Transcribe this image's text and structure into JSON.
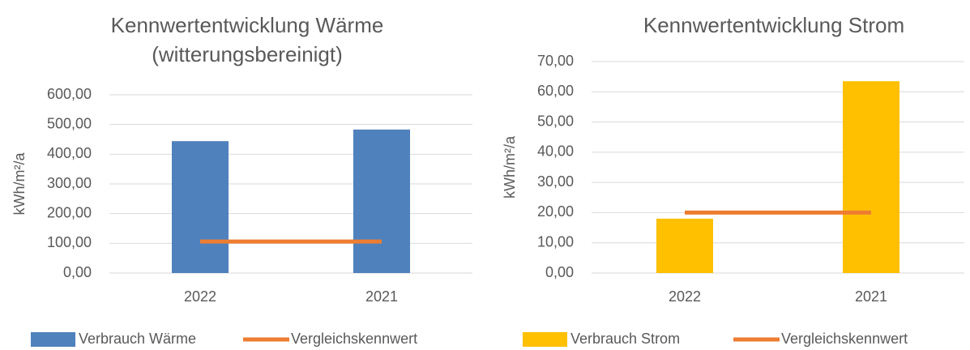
{
  "chart_data": [
    {
      "type": "combo",
      "title": [
        "Kennwertentwicklung Wärme",
        "(witterungsbereinigt)"
      ],
      "y_label": "kWh/m²/a",
      "categories": [
        "2022",
        "2021"
      ],
      "series": [
        {
          "name": "Verbrauch Wärme",
          "type": "bar",
          "color": "#4f81bd",
          "values": [
            444,
            483
          ]
        },
        {
          "name": "Vergleichskennwert",
          "type": "line",
          "color": "#ed7d31",
          "values": [
            106,
            106
          ]
        }
      ],
      "ylim": [
        0,
        600
      ],
      "yticks": [
        {
          "value": 0,
          "label": "0,00"
        },
        {
          "value": 100,
          "label": "100,00"
        },
        {
          "value": 200,
          "label": "200,00"
        },
        {
          "value": 300,
          "label": "300,00"
        },
        {
          "value": 400,
          "label": "400,00"
        },
        {
          "value": 500,
          "label": "500,00"
        },
        {
          "value": 600,
          "label": "600,00"
        }
      ],
      "grid": true,
      "legend": "bottom"
    },
    {
      "type": "combo",
      "title": [
        "Kennwertentwicklung Strom"
      ],
      "y_label": "kWh/m²/a",
      "categories": [
        "2022",
        "2021"
      ],
      "series": [
        {
          "name": "Verbrauch Strom",
          "type": "bar",
          "color": "#ffc000",
          "values": [
            18,
            63.5
          ]
        },
        {
          "name": "Vergleichskennwert",
          "type": "line",
          "color": "#ed7d31",
          "values": [
            20,
            20
          ]
        }
      ],
      "ylim": [
        0,
        70
      ],
      "yticks": [
        {
          "value": 0,
          "label": "0,00"
        },
        {
          "value": 10,
          "label": "10,00"
        },
        {
          "value": 20,
          "label": "20,00"
        },
        {
          "value": 30,
          "label": "30,00"
        },
        {
          "value": 40,
          "label": "40,00"
        },
        {
          "value": 50,
          "label": "50,00"
        },
        {
          "value": 60,
          "label": "60,00"
        },
        {
          "value": 70,
          "label": "70,00"
        }
      ],
      "grid": true,
      "legend": "bottom"
    }
  ]
}
